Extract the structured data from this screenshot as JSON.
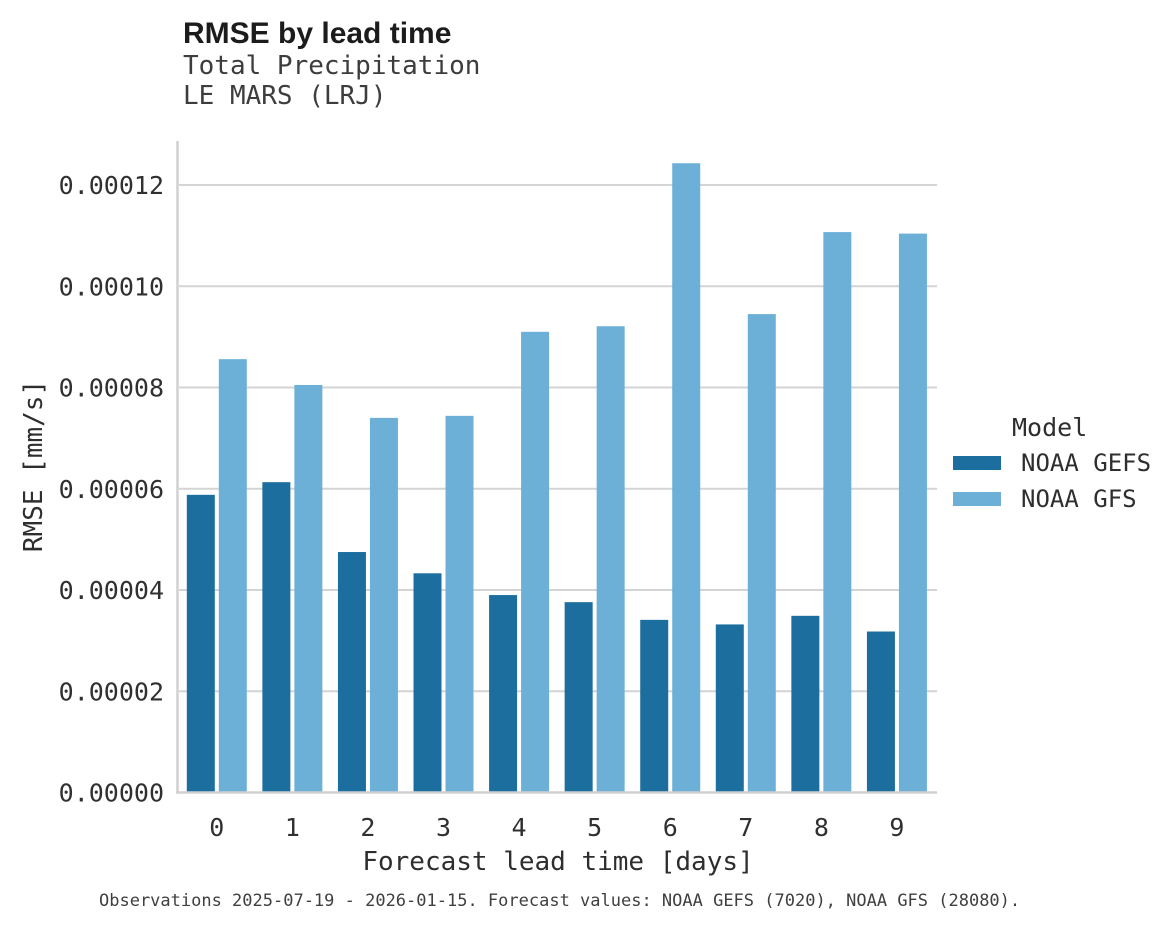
{
  "chart_data": {
    "type": "bar",
    "title": "RMSE by lead time",
    "subtitle": "Total Precipitation",
    "subtitle2": "LE MARS (LRJ)",
    "xlabel": "Forecast lead time [days]",
    "ylabel": "RMSE [mm/s]",
    "categories": [
      "0",
      "1",
      "2",
      "3",
      "4",
      "5",
      "6",
      "7",
      "8",
      "9"
    ],
    "series": [
      {
        "name": "NOAA GEFS",
        "color": "#1C6E9E",
        "values": [
          5.88e-05,
          6.13e-05,
          4.75e-05,
          4.33e-05,
          3.9e-05,
          3.76e-05,
          3.41e-05,
          3.32e-05,
          3.49e-05,
          3.18e-05
        ]
      },
      {
        "name": "NOAA GFS",
        "color": "#6CB0D8",
        "values": [
          8.56e-05,
          8.05e-05,
          7.4e-05,
          7.44e-05,
          9.1e-05,
          9.21e-05,
          0.0001243,
          9.45e-05,
          0.0001107,
          0.0001104
        ]
      }
    ],
    "ylim": [
      0,
      0.000129
    ],
    "yticks": {
      "values": [
        0.0,
        2e-05,
        4e-05,
        6e-05,
        8e-05,
        0.0001,
        0.00012
      ],
      "labels": [
        "0.00000",
        "0.00002",
        "0.00004",
        "0.00006",
        "0.00008",
        "0.00010",
        "0.00012"
      ]
    },
    "grid": true,
    "legend": {
      "title": "Model",
      "position": "right"
    },
    "caption": "Observations 2025-07-19 - 2026-01-15. Forecast values: NOAA GEFS (7020), NOAA GFS (28080)."
  },
  "colors": {
    "grid": "#d4d4d4",
    "spine": "#d0d0d0",
    "tick_text": "#303030",
    "axis_label_text": "#2e2e2e"
  }
}
